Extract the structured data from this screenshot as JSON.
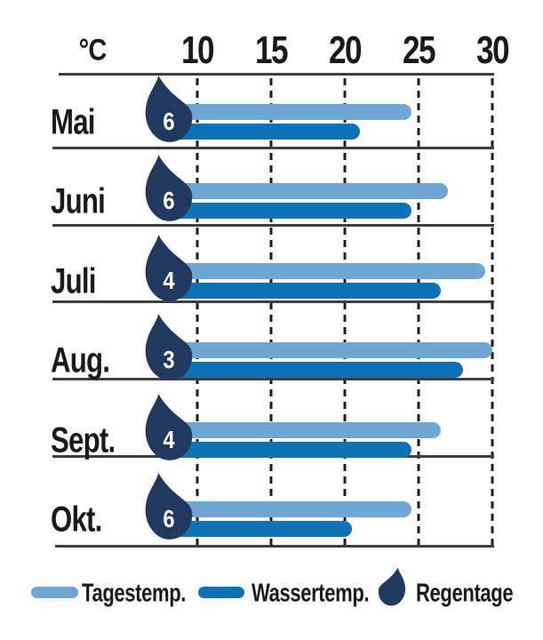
{
  "chart_data": {
    "type": "bar",
    "orientation": "horizontal",
    "unit_label": "°C",
    "x_ticks": [
      "10",
      "15",
      "20",
      "25",
      "30"
    ],
    "xlim": [
      10,
      30
    ],
    "grid": "dashed-vertical",
    "legend_position": "bottom",
    "categories": [
      "Mai",
      "Juni",
      "Juli",
      "Aug.",
      "Sept.",
      "Okt."
    ],
    "series": [
      {
        "name": "Tagestemp.",
        "color": "#6FA6D3",
        "values": [
          24.5,
          27,
          29.5,
          30,
          26.5,
          24.5
        ]
      },
      {
        "name": "Wassertemp.",
        "color": "#0E72B6",
        "values": [
          21,
          24.5,
          26.5,
          28,
          24.5,
          20.5
        ]
      }
    ],
    "rain_days": {
      "name": "Regentage",
      "color": "#21395E",
      "values": [
        6,
        6,
        4,
        3,
        4,
        6
      ]
    }
  },
  "legend": {
    "items": [
      {
        "label": "Tagestemp.",
        "color": "#6FA6D3"
      },
      {
        "label": "Wassertemp.",
        "color": "#0E72B6"
      },
      {
        "label": "Regentage",
        "color": "#21395E"
      }
    ]
  },
  "colors": {
    "day_temp": "#6FA6D3",
    "water_temp": "#0E72B6",
    "raindrop": "#21395E",
    "text": "#1A1A1A",
    "line": "#3F3F3F",
    "background": "#FFFFFF"
  }
}
